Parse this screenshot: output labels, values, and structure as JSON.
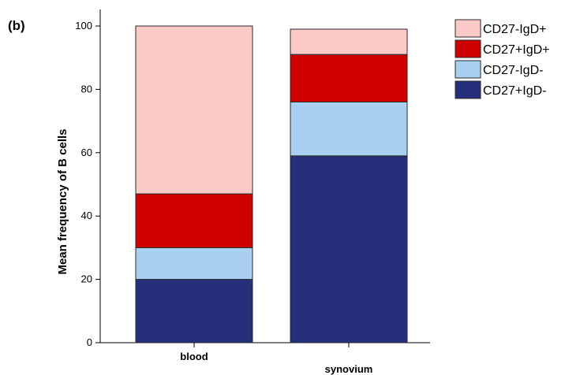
{
  "panel_label": "(b)",
  "chart_data": {
    "type": "bar",
    "stacked": true,
    "categories": [
      "blood",
      "synovium"
    ],
    "ylabel": "Mean frequency of B cells",
    "xlabel": "",
    "ylim": [
      0,
      100
    ],
    "yticks": [
      0,
      20,
      40,
      60,
      80,
      100
    ],
    "legend_position": "top-right",
    "grid": false,
    "series": [
      {
        "name": "CD27+IgD-",
        "color": "#26307a",
        "values": [
          20,
          59
        ]
      },
      {
        "name": "CD27-IgD-",
        "color": "#a9d0f0",
        "values": [
          10,
          17
        ]
      },
      {
        "name": "CD27+IgD+",
        "color": "#d00000",
        "values": [
          17,
          15
        ]
      },
      {
        "name": "CD27-IgD+",
        "color": "#fcc8c8",
        "values": [
          53,
          8
        ]
      }
    ],
    "legend_order": [
      "CD27-IgD+",
      "CD27+IgD+",
      "CD27-IgD-",
      "CD27+IgD-"
    ]
  }
}
